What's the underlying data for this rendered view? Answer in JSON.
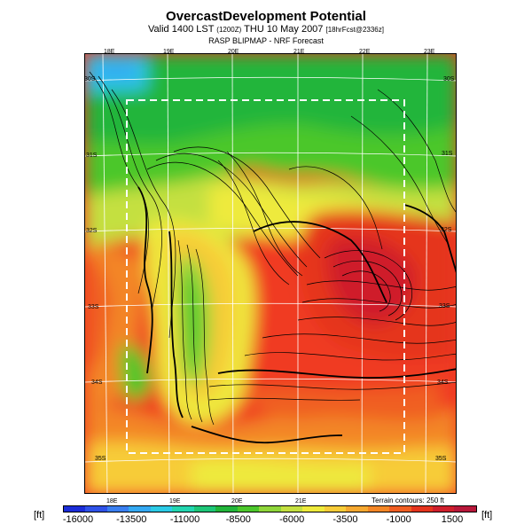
{
  "header": {
    "title": "OvercastDevelopment Potential",
    "subtitle_main": "Valid 1400 LST",
    "subtitle_utc": "(1200Z)",
    "subtitle_date": "THU 10 May 2007",
    "subtitle_run": "[18hrFcst@2336z]",
    "source": "RASP BLIPMAP - NRF Forecast"
  },
  "map": {
    "top_lon_labels": [
      "18E",
      "19E",
      "20E",
      "21E",
      "22E",
      "23E"
    ],
    "bottom_lon_labels": [
      "18E",
      "19E",
      "20E",
      "21E"
    ],
    "left_lat_labels": [
      "30S",
      "31S",
      "32S",
      "33S",
      "34S",
      "35S"
    ],
    "right_lat_labels": [
      "30S",
      "31S",
      "32S",
      "33S",
      "34S",
      "35S"
    ],
    "terrain_note": "Terrain contours: 250 ft"
  },
  "colorbar": {
    "unit_left": "[ft]",
    "unit_right": "[ft]",
    "tick_labels": [
      "-16000",
      "-13500",
      "-11000",
      "-8500",
      "-6000",
      "-3500",
      "-1000",
      "1500"
    ],
    "colors": [
      "#1b2dd8",
      "#2f52e8",
      "#3a7ff0",
      "#34a9f2",
      "#2ccbe6",
      "#23d6b0",
      "#1ec678",
      "#22b53a",
      "#4cc72c",
      "#8fd63a",
      "#c4e040",
      "#eeea3c",
      "#f7cc38",
      "#f5a830",
      "#f38626",
      "#f05e22",
      "#e5341e",
      "#cf1f2c",
      "#b8183a"
    ],
    "accent_dashed_box": "#ffffff"
  }
}
